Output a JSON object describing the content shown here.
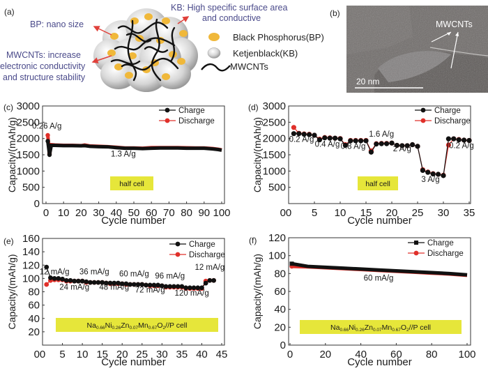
{
  "figure": {
    "panels": {
      "a": {
        "label": "(a)",
        "annotations": {
          "bp": "BP: nano size",
          "kb_line1": "KB: High specific surface area",
          "kb_line2": "and conductive",
          "mwcnt_line1": "MWCNTs: increase",
          "mwcnt_line2": "electronic conductivity",
          "mwcnt_line3": "and structure stability"
        },
        "legend": [
          {
            "icon": "yellow-dot-icon",
            "label": "Black Phosphorus(BP)",
            "color": "#f0b83a"
          },
          {
            "icon": "grey-sphere-icon",
            "label": "Ketjenblack(KB)",
            "color": "#d8d8d8"
          },
          {
            "icon": "wavy-line-icon",
            "label": "MWCNTs",
            "color": "#111111"
          }
        ],
        "arrow_color": "#e0403a",
        "text_color": "#4a4a8a"
      },
      "b": {
        "label": "(b)",
        "annotation": "MWCNTs",
        "scale_bar": "20 nm"
      }
    },
    "colors": {
      "charge": "#111111",
      "discharge": "#e0302a",
      "highlight_box": "#e6e63a"
    }
  },
  "chart_data": [
    {
      "id": "c",
      "label": "(c)",
      "type": "line",
      "xlabel": "Cycle number",
      "ylabel": "Capacity/(mAh/g)",
      "xlim": [
        0,
        100
      ],
      "ylim": [
        0,
        3000
      ],
      "xticks": [
        0,
        10,
        20,
        30,
        40,
        50,
        60,
        70,
        80,
        90,
        100
      ],
      "yticks": [
        0,
        500,
        1000,
        1500,
        2000,
        2500,
        3000
      ],
      "legend": [
        "Charge",
        "Discharge"
      ],
      "legend_position": "top-right",
      "annotations": [
        {
          "text": "0.26 A/g",
          "x": 0.5,
          "y": 2300
        },
        {
          "text": "1.3 A/g",
          "x": 44,
          "y": 1450
        }
      ],
      "box_label": "half cell",
      "series": [
        {
          "name": "Charge",
          "x": [
            1,
            2,
            3,
            5,
            10,
            15,
            20,
            22,
            25,
            30,
            35,
            40,
            45,
            50,
            55,
            60,
            65,
            70,
            75,
            80,
            85,
            90,
            95,
            98,
            100
          ],
          "values": [
            1920,
            1500,
            1790,
            1790,
            1780,
            1780,
            1775,
            1780,
            1760,
            1750,
            1745,
            1720,
            1700,
            1700,
            1690,
            1700,
            1710,
            1710,
            1710,
            1700,
            1700,
            1700,
            1680,
            1660,
            1640
          ]
        },
        {
          "name": "Discharge",
          "x": [
            1,
            2,
            3,
            5,
            10,
            15,
            20,
            22,
            25,
            30,
            35,
            40,
            45,
            50,
            55,
            60,
            65,
            70,
            75,
            80,
            85,
            90,
            95,
            98,
            100
          ],
          "values": [
            2100,
            1540,
            1810,
            1800,
            1790,
            1790,
            1780,
            1800,
            1770,
            1760,
            1750,
            1730,
            1710,
            1710,
            1700,
            1720,
            1720,
            1720,
            1720,
            1715,
            1710,
            1710,
            1690,
            1670,
            1650
          ]
        }
      ]
    },
    {
      "id": "d",
      "label": "(d)",
      "type": "line",
      "xlabel": "Cycle number",
      "ylabel": "Capacity/(mAh/g)",
      "xlim": [
        0,
        35
      ],
      "ylim": [
        0,
        3000
      ],
      "xticks": [
        0,
        5,
        10,
        15,
        20,
        25,
        30,
        35
      ],
      "yticks": [
        500,
        1000,
        1500,
        2000,
        2500,
        3000
      ],
      "legend": [
        "Charge",
        "Discharge"
      ],
      "legend_position": "top-right",
      "annotations": [
        {
          "text": "0.2 A/g",
          "x": 2.5,
          "y": 1900
        },
        {
          "text": "0.4 A/g",
          "x": 7.5,
          "y": 1750
        },
        {
          "text": "0.8 A/g",
          "x": 12.5,
          "y": 1680
        },
        {
          "text": "1.6 A/g",
          "x": 18,
          "y": 2060
        },
        {
          "text": "2 A/g",
          "x": 22,
          "y": 1610
        },
        {
          "text": "3 A/g",
          "x": 27.5,
          "y": 660
        },
        {
          "text": "0.2 A/g",
          "x": 33.5,
          "y": 1700
        }
      ],
      "box_label": "half cell",
      "series": [
        {
          "name": "Charge",
          "x": [
            1,
            2,
            3,
            4,
            5,
            6,
            7,
            8,
            9,
            10,
            11,
            12,
            13,
            14,
            15,
            16,
            17,
            18,
            19,
            20,
            21,
            22,
            23,
            24,
            25,
            26,
            27,
            28,
            29,
            30,
            31,
            32,
            33,
            34,
            35
          ],
          "values": [
            2150,
            2150,
            2130,
            2120,
            2100,
            1960,
            2020,
            2010,
            2010,
            1990,
            1790,
            1930,
            1930,
            1930,
            1930,
            1580,
            1830,
            1840,
            1840,
            1860,
            1790,
            1780,
            1780,
            1810,
            1760,
            1020,
            960,
            910,
            900,
            860,
            1990,
            1990,
            1960,
            1950,
            1940
          ]
        },
        {
          "name": "Discharge",
          "x": [
            1,
            2,
            3,
            4,
            5,
            6,
            7,
            8,
            9,
            10,
            11,
            12,
            13,
            14,
            15,
            16,
            17,
            18,
            19,
            20,
            21,
            22,
            23,
            24,
            25,
            26,
            27,
            28,
            29,
            30,
            31,
            32,
            33,
            34,
            35
          ],
          "values": [
            2340,
            2160,
            2140,
            2130,
            2100,
            1980,
            2030,
            2020,
            2010,
            2000,
            1810,
            1940,
            1940,
            1940,
            1940,
            1620,
            1840,
            1850,
            1850,
            1860,
            1790,
            1780,
            1780,
            1810,
            1760,
            1040,
            970,
            920,
            900,
            870,
            1800,
            1990,
            1970,
            1950,
            1940
          ]
        }
      ]
    },
    {
      "id": "e",
      "label": "(e)",
      "type": "line",
      "xlabel": "Cycle number",
      "ylabel": "Capacity/(mAh/g)",
      "xlim": [
        0,
        45
      ],
      "ylim": [
        0,
        160
      ],
      "xticks": [
        0,
        5,
        10,
        15,
        20,
        25,
        30,
        35,
        40,
        45
      ],
      "yticks": [
        20,
        40,
        60,
        80,
        100,
        120,
        140,
        160
      ],
      "legend": [
        "Charge",
        "Discharge"
      ],
      "legend_position": "top-right",
      "annotations": [
        {
          "text": "12 mA/g",
          "x": 3,
          "y": 106
        },
        {
          "text": "24 mA/g",
          "x": 8,
          "y": 83
        },
        {
          "text": "36 mA/g",
          "x": 13,
          "y": 106
        },
        {
          "text": "48 mA/g",
          "x": 18,
          "y": 83
        },
        {
          "text": "60 mA/g",
          "x": 23,
          "y": 103
        },
        {
          "text": "72 mA/g",
          "x": 27,
          "y": 79
        },
        {
          "text": "96 mA/g",
          "x": 32,
          "y": 100
        },
        {
          "text": "120 mA/g",
          "x": 37.5,
          "y": 74
        },
        {
          "text": "12 mA/g",
          "x": 42,
          "y": 113
        }
      ],
      "box_label": {
        "parts": [
          [
            "Na",
            ""
          ],
          [
            "0.66",
            "sub"
          ],
          [
            "Ni",
            ""
          ],
          [
            "0.26",
            "sub"
          ],
          [
            "Zn",
            ""
          ],
          [
            "0.07",
            "sub"
          ],
          [
            "Mn",
            ""
          ],
          [
            "0.67",
            "sub"
          ],
          [
            "O",
            ""
          ],
          [
            "2",
            "sub"
          ],
          [
            "//P cell",
            ""
          ]
        ]
      },
      "series": [
        {
          "name": "Charge",
          "x": [
            1,
            2,
            3,
            4,
            5,
            6,
            7,
            8,
            9,
            10,
            11,
            12,
            13,
            14,
            15,
            16,
            17,
            18,
            19,
            20,
            21,
            22,
            23,
            24,
            25,
            26,
            27,
            28,
            29,
            30,
            31,
            32,
            33,
            34,
            35,
            36,
            37,
            38,
            39,
            40,
            41,
            42,
            43
          ],
          "values": [
            117,
            101,
            100,
            100,
            99,
            97,
            97,
            96,
            96,
            96,
            95,
            94,
            94,
            94,
            94,
            93,
            93,
            93,
            93,
            92,
            92,
            91,
            91,
            91,
            91,
            90,
            90,
            90,
            90,
            89,
            88,
            88,
            88,
            88,
            88,
            86,
            86,
            86,
            86,
            86,
            93,
            97,
            97
          ]
        },
        {
          "name": "Discharge",
          "x": [
            1,
            2,
            3,
            4,
            5,
            6,
            7,
            8,
            9,
            10,
            11,
            12,
            13,
            14,
            15,
            16,
            17,
            18,
            19,
            20,
            21,
            22,
            23,
            24,
            25,
            26,
            27,
            28,
            29,
            30,
            31,
            32,
            33,
            34,
            35,
            36,
            37,
            38,
            39,
            40,
            41,
            42,
            43
          ],
          "values": [
            91,
            97,
            98,
            98,
            98,
            96,
            96,
            96,
            96,
            96,
            94,
            94,
            94,
            94,
            94,
            93,
            92,
            92,
            92,
            92,
            91,
            91,
            91,
            91,
            91,
            90,
            89,
            89,
            89,
            89,
            87,
            87,
            87,
            87,
            87,
            85,
            85,
            85,
            85,
            85,
            96,
            97,
            97
          ]
        }
      ]
    },
    {
      "id": "f",
      "label": "(f)",
      "type": "line",
      "xlabel": "Cycle number",
      "ylabel": "Capacity/(mAh/g)",
      "xlim": [
        0,
        100
      ],
      "ylim": [
        0,
        120
      ],
      "xticks": [
        0,
        20,
        40,
        60,
        80,
        100
      ],
      "yticks": [
        0,
        20,
        40,
        60,
        80,
        100,
        120
      ],
      "legend": [
        "Charge",
        "Discharge"
      ],
      "legend_position": "top-right",
      "annotations": [
        {
          "text": "60 mA/g",
          "x": 50,
          "y": 72
        }
      ],
      "box_label": {
        "parts": [
          [
            "Na",
            ""
          ],
          [
            "0.66",
            "sub"
          ],
          [
            "Ni",
            ""
          ],
          [
            "0.26",
            "sub"
          ],
          [
            "Zn",
            ""
          ],
          [
            "0.07",
            "sub"
          ],
          [
            "Mn",
            ""
          ],
          [
            "0.67",
            "sub"
          ],
          [
            "O",
            ""
          ],
          [
            "2",
            "sub"
          ],
          [
            "//P cell",
            ""
          ]
        ]
      },
      "series": [
        {
          "name": "Charge",
          "x": [
            1,
            10,
            20,
            30,
            40,
            50,
            60,
            70,
            80,
            90,
            100
          ],
          "values": [
            91,
            88,
            87,
            86,
            85,
            84,
            83,
            82,
            81,
            80,
            78.5
          ]
        },
        {
          "name": "Discharge",
          "x": [
            1,
            10,
            20,
            30,
            40,
            50,
            60,
            70,
            80,
            90,
            100
          ],
          "values": [
            88,
            87.5,
            86.5,
            85.5,
            84.5,
            83.5,
            82.5,
            81.5,
            80.5,
            79.5,
            78
          ]
        }
      ]
    }
  ]
}
